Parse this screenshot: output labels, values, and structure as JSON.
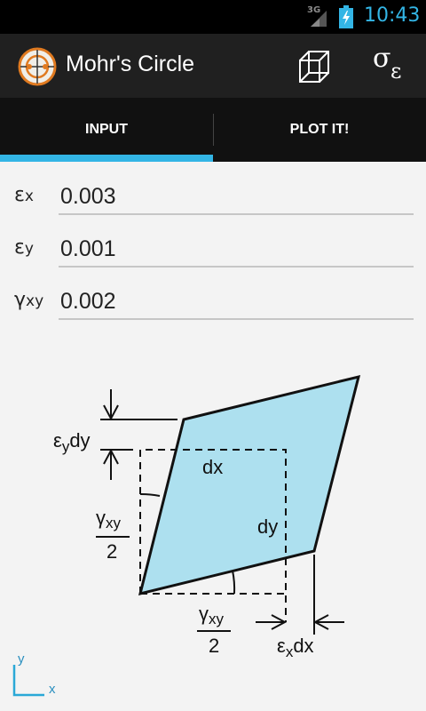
{
  "status_bar": {
    "network": "3G",
    "time": "10:43",
    "accent_color": "#33b5e5"
  },
  "action_bar": {
    "title": "Mohr's Circle",
    "icons": [
      "app-logo-icon",
      "cube-icon",
      "sigma-epsilon-icon"
    ],
    "sigma_symbol": "σ",
    "epsilon_symbol": "ε"
  },
  "tabs": [
    {
      "label": "INPUT",
      "selected": true
    },
    {
      "label": "PLOT IT!",
      "selected": false
    }
  ],
  "fields": [
    {
      "symbol": "ε",
      "sub": "x",
      "value": "0.003"
    },
    {
      "symbol": "ε",
      "sub": "y",
      "value": "0.001"
    },
    {
      "symbol": "γ",
      "sub": "xy",
      "value": "0.002"
    }
  ],
  "diagram": {
    "fill_color": "#ade0ef",
    "labels": {
      "eps": "ε",
      "y": "y",
      "x": "x",
      "dy": "dy",
      "dx": "dx",
      "gamma": "γ",
      "xy": "xy",
      "two": "2"
    }
  }
}
